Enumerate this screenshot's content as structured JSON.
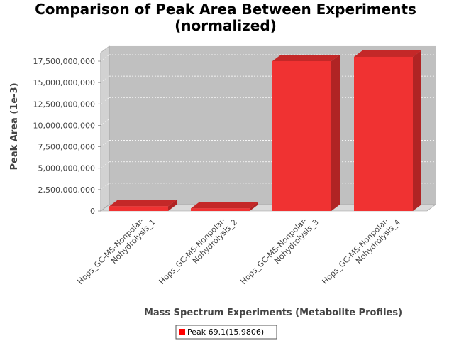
{
  "chart_data": {
    "type": "bar",
    "title_lines": [
      "Comparison of Peak Area Between Experiments",
      "(normalized)"
    ],
    "xlabel": "Mass Spectrum Experiments (Metabolite Profiles)",
    "ylabel": "Peak Area (1e-3)",
    "categories": [
      [
        "Hops_GC-MS-Nonpolar-",
        "Nohydrolysis_1"
      ],
      [
        "Hops_GC-MS-Nonpolar-",
        "Nohydrolysis_2"
      ],
      [
        "Hops_GC-MS-Nonpolar-",
        "Nohydrolysis_3"
      ],
      [
        "Hops_GC-MS-Nonpolar-",
        "Nohydrolysis_4"
      ]
    ],
    "series": [
      {
        "name": "Peak 69.1(15.9806)",
        "values": [
          550000000,
          300000000,
          17500000000,
          18000000000
        ]
      }
    ],
    "ylim": [
      0,
      18500000000
    ],
    "yticks": [
      0,
      2500000000,
      5000000000,
      7500000000,
      10000000000,
      12500000000,
      15000000000,
      17500000000
    ],
    "ytick_labels": [
      "0",
      "2,500,000,000",
      "5,000,000,000",
      "7,500,000,000",
      "10,000,000,000",
      "12,500,000,000",
      "15,000,000,000",
      "17,500,000,000"
    ],
    "grid": true,
    "legend_position": "bottom-center",
    "colors": {
      "bar_front": "#f03232",
      "bar_top": "#c42828",
      "bar_side": "#b02424",
      "plot_back": "#c0c0c0",
      "plot_floor": "#dadada",
      "plot_wall": "#d2d2d2"
    }
  }
}
